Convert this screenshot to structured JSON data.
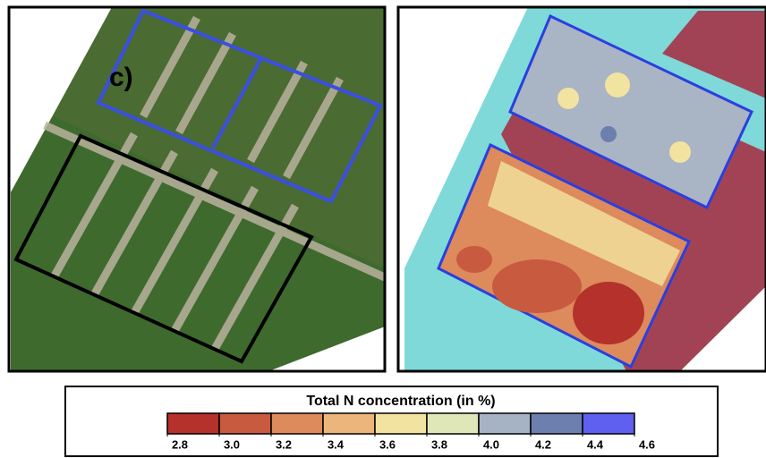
{
  "panel_label": "c)",
  "legend": {
    "title": "Total N concentration (in %)",
    "colors": [
      "#b5312b",
      "#c85a3f",
      "#dd8a5c",
      "#ebb57b",
      "#f3e3a0",
      "#dfe6b8",
      "#a5b3c4",
      "#6d7fae",
      "#5f5ff0"
    ],
    "ticks": [
      2.8,
      {
        "value": 3,
        "label": "3.0"
      },
      3.2,
      3.4,
      3.6,
      3.8,
      {
        "value": 4,
        "label": "4.0"
      },
      4.2,
      4.4,
      4.6
    ]
  }
}
